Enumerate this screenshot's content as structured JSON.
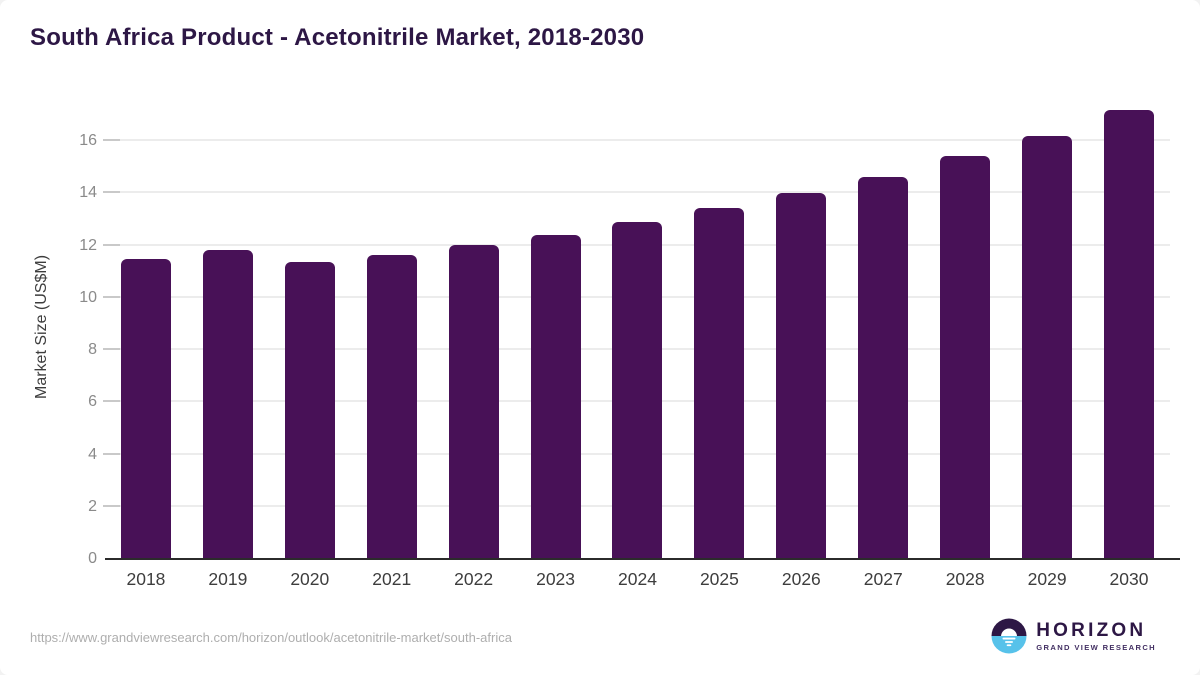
{
  "page": {
    "title": "South Africa Product - Acetonitrile Market, 2018-2030",
    "source_url": "https://www.grandviewresearch.com/horizon/outlook/acetonitrile-market/south-africa"
  },
  "logo": {
    "name": "HORIZON",
    "subtitle": "GRAND VIEW RESEARCH"
  },
  "colors": {
    "bar": "#481157",
    "title_text": "#2d1745",
    "gridline": "#ececec",
    "tick": "#c9c9c9",
    "axis_line": "#2b2b2b",
    "y_tick_text": "#8a8a8a",
    "x_tick_text": "#3d3d3d",
    "source_text": "#aeaeae",
    "logo_blue": "#57c2ea",
    "logo_dark": "#2d1745"
  },
  "chart_data": {
    "type": "bar",
    "title": "South Africa Product - Acetonitrile Market, 2018-2030",
    "categories": [
      "2018",
      "2019",
      "2020",
      "2021",
      "2022",
      "2023",
      "2024",
      "2025",
      "2026",
      "2027",
      "2028",
      "2029",
      "2030"
    ],
    "values": [
      11.48,
      11.84,
      11.37,
      11.65,
      12.02,
      12.41,
      12.92,
      13.46,
      14.01,
      14.62,
      15.44,
      16.22,
      17.19
    ],
    "xlabel": "",
    "ylabel": "Market Size (US$M)",
    "ylim": [
      0,
      17.6
    ],
    "yticks": [
      0,
      2,
      4,
      6,
      8,
      10,
      12,
      14,
      16
    ],
    "grid": "horizontal",
    "legend": false,
    "bar_color": "#481157"
  }
}
